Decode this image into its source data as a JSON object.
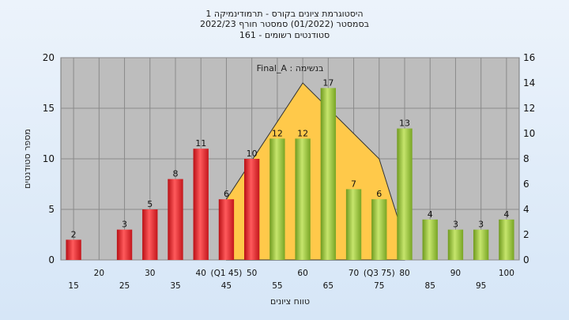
{
  "header": {
    "title_lines": [
      "היסטוגרמת ציונים בקורס - תרמודינמיקה 1",
      "בסמסטר  (01/2022)  סמסטר חורף  2022/23",
      "סטודנטים רשומים - 161"
    ]
  },
  "chart_data": {
    "type": "bar",
    "annotation": "בנשימה : Final_A",
    "xlabel": "טווח ציונים",
    "ylabel": "מספר סטודנטים",
    "categories": [
      15,
      20,
      25,
      30,
      35,
      40,
      45,
      50,
      55,
      60,
      65,
      70,
      75,
      80,
      85,
      90,
      95,
      100
    ],
    "values": [
      2,
      0,
      3,
      5,
      8,
      11,
      6,
      10,
      12,
      12,
      17,
      7,
      6,
      13,
      4,
      3,
      3,
      4
    ],
    "bar_colors": [
      "red",
      "red",
      "red",
      "red",
      "red",
      "red",
      "red",
      "red",
      "green",
      "green",
      "green",
      "green",
      "green",
      "green",
      "green",
      "green",
      "green",
      "green"
    ],
    "x_tick_labels_row1": [
      "20",
      "25",
      "30",
      "35",
      "40",
      "(Q1 45)",
      "50",
      "55",
      "60",
      "65",
      "70",
      "(Q3 75)",
      "80",
      "85",
      "90",
      "95",
      "100"
    ],
    "x_tick_labels_row2": [
      "15",
      "25",
      "35",
      "45",
      "55",
      "65",
      "75",
      "85",
      "95"
    ],
    "y_left": {
      "lim": [
        0,
        20
      ],
      "ticks": [
        0,
        5,
        10,
        15,
        20
      ]
    },
    "y_right": {
      "lim": [
        0,
        16
      ],
      "ticks": [
        0,
        2,
        4,
        6,
        8,
        10,
        12,
        14,
        16
      ]
    },
    "curve": {
      "x": [
        45,
        60,
        75,
        80
      ],
      "y": [
        6,
        17.5,
        10,
        2
      ]
    },
    "grid": true,
    "colors": {
      "plot_bg": "#bdbdbd",
      "red_bar": "#e8262a",
      "green_bar": "#9ecb3c",
      "curve_fill": "#ffc94a",
      "grid": "#8a8a8a"
    }
  }
}
